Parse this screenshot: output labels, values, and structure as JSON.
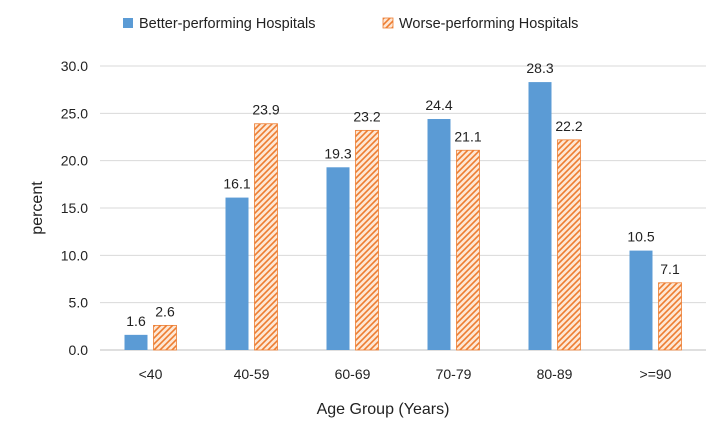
{
  "chart_data": {
    "type": "bar",
    "title": "",
    "xlabel": "Age Group (Years)",
    "ylabel": "percent",
    "ylim": [
      0,
      30
    ],
    "yticks": [
      "0.0",
      "5.0",
      "10.0",
      "15.0",
      "20.0",
      "25.0",
      "30.0"
    ],
    "ytick_values": [
      0,
      5,
      10,
      15,
      20,
      25,
      30
    ],
    "grid": "horizontal",
    "legend_position": "top",
    "categories": [
      "<40",
      "40-59",
      "60-69",
      "70-79",
      "80-89",
      ">=90"
    ],
    "series": [
      {
        "name": "Better-performing Hospitals",
        "color": "#5b9bd5",
        "pattern": "solid",
        "values": [
          1.6,
          16.1,
          19.3,
          24.4,
          28.3,
          10.5
        ],
        "labels": [
          "1.6",
          "16.1",
          "19.3",
          "24.4",
          "28.3",
          "10.5"
        ]
      },
      {
        "name": "Worse-performing Hospitals",
        "color": "#ed7d31",
        "pattern": "hatched",
        "values": [
          2.6,
          23.9,
          23.2,
          21.1,
          22.2,
          7.1
        ],
        "labels": [
          "2.6",
          "23.9",
          "23.2",
          "21.1",
          "22.2",
          "7.1"
        ]
      }
    ]
  }
}
